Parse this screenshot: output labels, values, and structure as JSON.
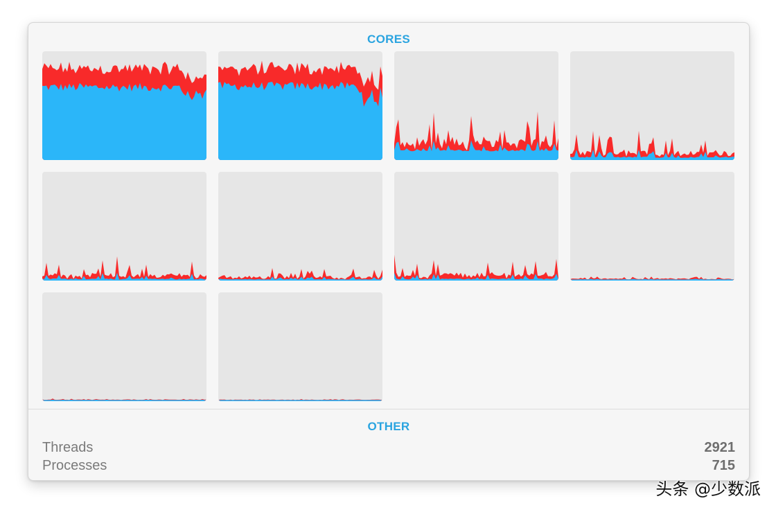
{
  "cores_section": {
    "title": "CORES"
  },
  "other_section": {
    "title": "OTHER"
  },
  "stats": [
    {
      "label": "Threads",
      "value": "2921"
    },
    {
      "label": "Processes",
      "value": "715"
    }
  ],
  "watermark": "头条 @少数派",
  "colors": {
    "user": "#2bb6f9",
    "system": "#f82a2a",
    "empty": "#e6e6e6",
    "accent": "#2aa4e0"
  },
  "cores": [
    {
      "profile": "heavy",
      "base": 0.67,
      "spike": 0.18,
      "sys_base": 0.13
    },
    {
      "profile": "heavy",
      "base": 0.68,
      "spike": 0.16,
      "sys_base": 0.12
    },
    {
      "profile": "medium",
      "base": 0.08,
      "spike": 0.3,
      "sys_base": 0.1
    },
    {
      "profile": "medium",
      "base": 0.02,
      "spike": 0.22,
      "sys_base": 0.05
    },
    {
      "profile": "low",
      "base": 0.01,
      "spike": 0.18,
      "sys_base": 0.04
    },
    {
      "profile": "low",
      "base": 0.01,
      "spike": 0.08,
      "sys_base": 0.03
    },
    {
      "profile": "low",
      "base": 0.01,
      "spike": 0.18,
      "sys_base": 0.05
    },
    {
      "profile": "idle",
      "base": 0.01,
      "spike": 0.02,
      "sys_base": 0.01
    },
    {
      "profile": "idle",
      "base": 0.01,
      "spike": 0.01,
      "sys_base": 0.005
    },
    {
      "profile": "idle",
      "base": 0.01,
      "spike": 0.005,
      "sys_base": 0.005
    }
  ]
}
